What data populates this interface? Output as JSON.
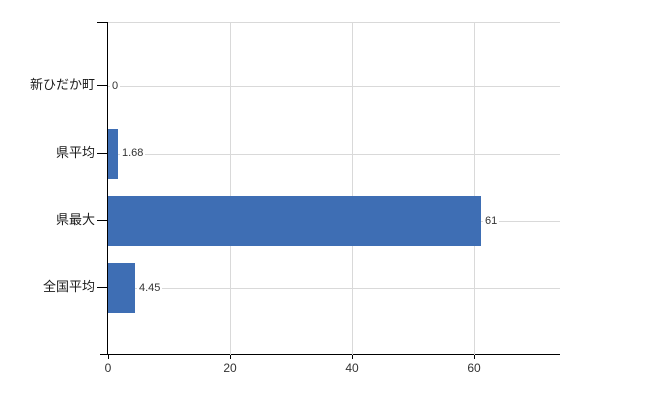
{
  "chart_data": {
    "type": "bar",
    "orientation": "horizontal",
    "title": "",
    "xlabel": "",
    "ylabel": "",
    "categories": [
      "新ひだか町",
      "県平均",
      "県最大",
      "全国平均"
    ],
    "values": [
      0,
      1.68,
      61,
      4.45
    ],
    "value_labels": [
      "0",
      "1.68",
      "61",
      "4.45"
    ],
    "x_tick_values": [
      0,
      20,
      40,
      60
    ],
    "x_tick_labels": [
      "0",
      "20",
      "40",
      "60"
    ],
    "xlim": [
      0,
      74
    ],
    "grid": true,
    "legend": false,
    "colors": {
      "bar": "#3e6eb4",
      "grid": "#d9d9d9",
      "axis": "#000000",
      "text": "#1a1a1a",
      "value_text": "#333333",
      "background": "#ffffff"
    }
  }
}
